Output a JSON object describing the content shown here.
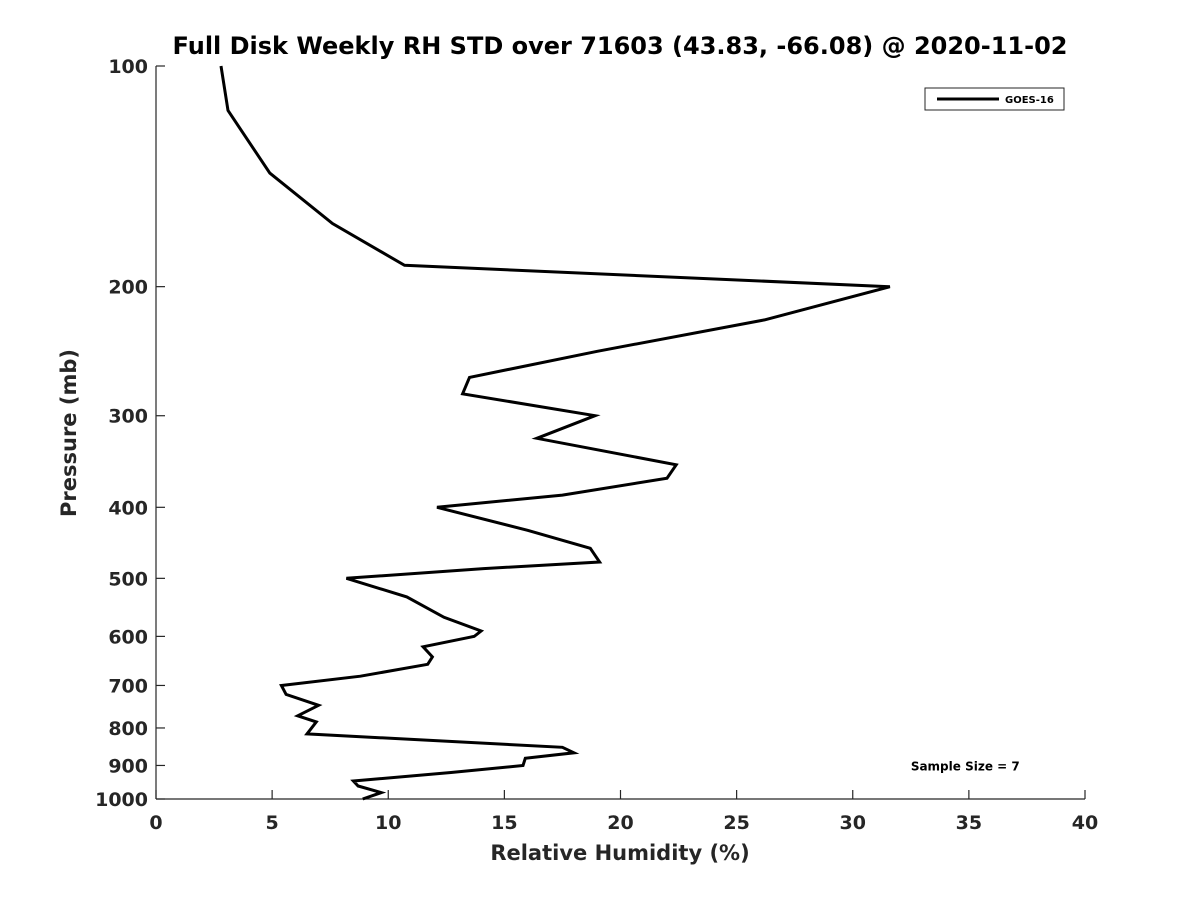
{
  "chart_data": {
    "type": "line",
    "title": "Full Disk Weekly RH STD over 71603 (43.83, -66.08) @ 2020-11-02",
    "xlabel": "Relative Humidity (%)",
    "ylabel": "Pressure (mb)",
    "xlim": [
      0,
      40
    ],
    "ylim": [
      100,
      1000
    ],
    "yscale": "log",
    "y_reversed": true,
    "grid": false,
    "xticks": [
      0,
      5,
      10,
      15,
      20,
      25,
      30,
      35,
      40
    ],
    "xtick_labels": [
      "0",
      "5",
      "10",
      "15",
      "20",
      "25",
      "30",
      "35",
      "40"
    ],
    "yticks": [
      100,
      200,
      300,
      400,
      500,
      600,
      700,
      800,
      900,
      1000
    ],
    "ytick_labels": [
      "100",
      "200",
      "300",
      "400",
      "500",
      "600",
      "700",
      "800",
      "900",
      "1000"
    ],
    "legend_position": "top-right",
    "series": [
      {
        "name": "GOES-16",
        "color": "#000000",
        "x": [
          2.8,
          3.1,
          4.9,
          7.6,
          10.7,
          31.6,
          26.2,
          19.0,
          13.5,
          13.2,
          18.9,
          16.4,
          22.4,
          22.0,
          17.5,
          12.1,
          16.0,
          18.7,
          19.1,
          14.1,
          8.2,
          10.8,
          12.4,
          14.0,
          13.7,
          11.5,
          11.9,
          11.7,
          8.8,
          5.4,
          5.6,
          7.0,
          6.1,
          6.9,
          6.5,
          17.5,
          18.0,
          15.9,
          15.8,
          12.7,
          8.5,
          8.7,
          9.7,
          8.9
        ],
        "y": [
          100,
          115,
          140,
          164,
          187,
          200,
          222,
          245,
          266,
          280,
          300,
          322,
          350,
          365,
          385,
          400,
          430,
          455,
          475,
          485,
          500,
          530,
          565,
          590,
          600,
          620,
          640,
          655,
          680,
          700,
          720,
          745,
          770,
          785,
          815,
          850,
          865,
          880,
          900,
          920,
          945,
          960,
          980,
          1000
        ]
      }
    ],
    "annotations": [
      {
        "text": "Sample Size = 7",
        "x": 32.5,
        "y": 900
      }
    ]
  }
}
